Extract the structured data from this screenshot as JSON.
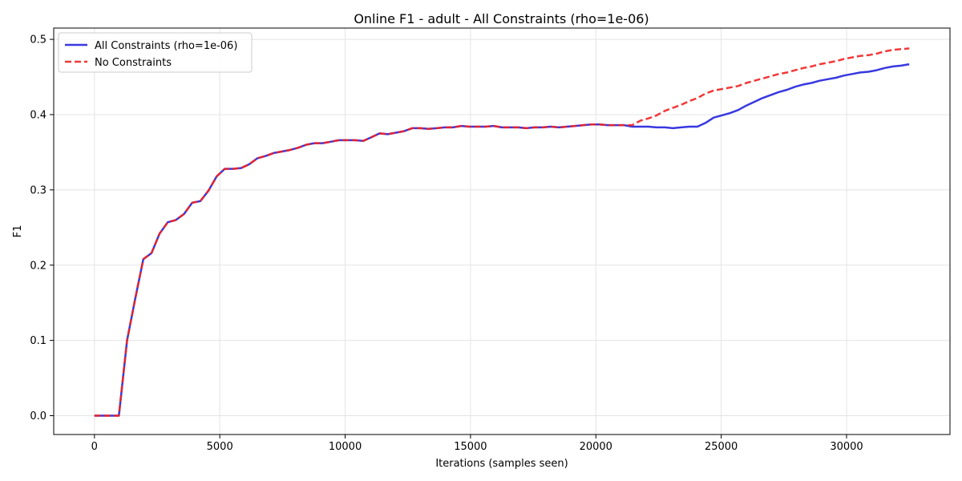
{
  "chart_data": {
    "type": "line",
    "title": "Online F1 - adult - All Constraints (rho=1e-06)",
    "xlabel": "Iterations (samples seen)",
    "ylabel": "F1",
    "xlim": [
      -1625,
      34125
    ],
    "ylim": [
      -0.025,
      0.515
    ],
    "xticks": [
      0,
      5000,
      10000,
      15000,
      20000,
      25000,
      30000
    ],
    "yticks": [
      0.0,
      0.1,
      0.2,
      0.3,
      0.4,
      0.5
    ],
    "xtick_labels": [
      "0",
      "5000",
      "10000",
      "15000",
      "20000",
      "25000",
      "30000"
    ],
    "ytick_labels": [
      "0.0",
      "0.1",
      "0.2",
      "0.3",
      "0.4",
      "0.5"
    ],
    "grid": true,
    "legend_position": "top-left",
    "series": [
      {
        "name": "All Constraints (rho=1e-06)",
        "color": "#2222dd",
        "style": "solid",
        "points": [
          [
            0,
            0.0
          ],
          [
            325,
            0.0
          ],
          [
            650,
            0.0
          ],
          [
            975,
            0.0
          ],
          [
            1300,
            0.1
          ],
          [
            1625,
            0.155
          ],
          [
            1950,
            0.208
          ],
          [
            2275,
            0.216
          ],
          [
            2600,
            0.242
          ],
          [
            2925,
            0.257
          ],
          [
            3250,
            0.26
          ],
          [
            3575,
            0.268
          ],
          [
            3900,
            0.283
          ],
          [
            4225,
            0.285
          ],
          [
            4550,
            0.299
          ],
          [
            4875,
            0.318
          ],
          [
            5200,
            0.328
          ],
          [
            5525,
            0.328
          ],
          [
            5850,
            0.329
          ],
          [
            6175,
            0.334
          ],
          [
            6500,
            0.342
          ],
          [
            6825,
            0.345
          ],
          [
            7150,
            0.349
          ],
          [
            7475,
            0.351
          ],
          [
            7800,
            0.353
          ],
          [
            8125,
            0.356
          ],
          [
            8450,
            0.36
          ],
          [
            8775,
            0.362
          ],
          [
            9100,
            0.362
          ],
          [
            9425,
            0.364
          ],
          [
            9750,
            0.366
          ],
          [
            10075,
            0.366
          ],
          [
            10400,
            0.366
          ],
          [
            10725,
            0.365
          ],
          [
            11050,
            0.37
          ],
          [
            11375,
            0.375
          ],
          [
            11700,
            0.374
          ],
          [
            12025,
            0.376
          ],
          [
            12350,
            0.378
          ],
          [
            12675,
            0.382
          ],
          [
            13000,
            0.382
          ],
          [
            13325,
            0.381
          ],
          [
            13650,
            0.382
          ],
          [
            13975,
            0.383
          ],
          [
            14300,
            0.383
          ],
          [
            14625,
            0.385
          ],
          [
            14950,
            0.384
          ],
          [
            15275,
            0.384
          ],
          [
            15600,
            0.384
          ],
          [
            15925,
            0.385
          ],
          [
            16250,
            0.383
          ],
          [
            16575,
            0.383
          ],
          [
            16900,
            0.383
          ],
          [
            17225,
            0.382
          ],
          [
            17550,
            0.383
          ],
          [
            17875,
            0.383
          ],
          [
            18200,
            0.384
          ],
          [
            18525,
            0.383
          ],
          [
            18850,
            0.384
          ],
          [
            19175,
            0.385
          ],
          [
            19500,
            0.386
          ],
          [
            19825,
            0.387
          ],
          [
            20150,
            0.387
          ],
          [
            20475,
            0.386
          ],
          [
            20800,
            0.386
          ],
          [
            21125,
            0.386
          ],
          [
            21450,
            0.384
          ],
          [
            21775,
            0.384
          ],
          [
            22100,
            0.384
          ],
          [
            22425,
            0.383
          ],
          [
            22750,
            0.383
          ],
          [
            23075,
            0.382
          ],
          [
            23400,
            0.383
          ],
          [
            23725,
            0.384
          ],
          [
            24050,
            0.384
          ],
          [
            24375,
            0.389
          ],
          [
            24700,
            0.396
          ],
          [
            25025,
            0.399
          ],
          [
            25350,
            0.402
          ],
          [
            25675,
            0.406
          ],
          [
            26000,
            0.412
          ],
          [
            26325,
            0.417
          ],
          [
            26650,
            0.422
          ],
          [
            26975,
            0.426
          ],
          [
            27300,
            0.43
          ],
          [
            27625,
            0.433
          ],
          [
            27950,
            0.437
          ],
          [
            28275,
            0.44
          ],
          [
            28600,
            0.442
          ],
          [
            28925,
            0.445
          ],
          [
            29250,
            0.447
          ],
          [
            29575,
            0.449
          ],
          [
            29900,
            0.452
          ],
          [
            30225,
            0.454
          ],
          [
            30550,
            0.456
          ],
          [
            30875,
            0.457
          ],
          [
            31200,
            0.459
          ],
          [
            31525,
            0.462
          ],
          [
            31850,
            0.464
          ],
          [
            32175,
            0.465
          ],
          [
            32500,
            0.467
          ]
        ]
      },
      {
        "name": "No Constraints",
        "color": "#ee2222",
        "style": "dashed",
        "points": [
          [
            0,
            0.0
          ],
          [
            325,
            0.0
          ],
          [
            650,
            0.0
          ],
          [
            975,
            0.0
          ],
          [
            1300,
            0.1
          ],
          [
            1625,
            0.155
          ],
          [
            1950,
            0.208
          ],
          [
            2275,
            0.216
          ],
          [
            2600,
            0.242
          ],
          [
            2925,
            0.257
          ],
          [
            3250,
            0.26
          ],
          [
            3575,
            0.268
          ],
          [
            3900,
            0.283
          ],
          [
            4225,
            0.285
          ],
          [
            4550,
            0.299
          ],
          [
            4875,
            0.318
          ],
          [
            5200,
            0.328
          ],
          [
            5525,
            0.328
          ],
          [
            5850,
            0.329
          ],
          [
            6175,
            0.334
          ],
          [
            6500,
            0.342
          ],
          [
            6825,
            0.345
          ],
          [
            7150,
            0.349
          ],
          [
            7475,
            0.351
          ],
          [
            7800,
            0.353
          ],
          [
            8125,
            0.356
          ],
          [
            8450,
            0.36
          ],
          [
            8775,
            0.362
          ],
          [
            9100,
            0.362
          ],
          [
            9425,
            0.364
          ],
          [
            9750,
            0.366
          ],
          [
            10075,
            0.366
          ],
          [
            10400,
            0.366
          ],
          [
            10725,
            0.365
          ],
          [
            11050,
            0.37
          ],
          [
            11375,
            0.375
          ],
          [
            11700,
            0.374
          ],
          [
            12025,
            0.376
          ],
          [
            12350,
            0.378
          ],
          [
            12675,
            0.382
          ],
          [
            13000,
            0.382
          ],
          [
            13325,
            0.381
          ],
          [
            13650,
            0.382
          ],
          [
            13975,
            0.383
          ],
          [
            14300,
            0.383
          ],
          [
            14625,
            0.385
          ],
          [
            14950,
            0.384
          ],
          [
            15275,
            0.384
          ],
          [
            15600,
            0.384
          ],
          [
            15925,
            0.385
          ],
          [
            16250,
            0.383
          ],
          [
            16575,
            0.383
          ],
          [
            16900,
            0.383
          ],
          [
            17225,
            0.382
          ],
          [
            17550,
            0.383
          ],
          [
            17875,
            0.383
          ],
          [
            18200,
            0.384
          ],
          [
            18525,
            0.383
          ],
          [
            18850,
            0.384
          ],
          [
            19175,
            0.385
          ],
          [
            19500,
            0.386
          ],
          [
            19825,
            0.387
          ],
          [
            20150,
            0.387
          ],
          [
            20475,
            0.386
          ],
          [
            20800,
            0.386
          ],
          [
            21125,
            0.386
          ],
          [
            21450,
            0.386
          ],
          [
            21775,
            0.392
          ],
          [
            22100,
            0.395
          ],
          [
            22425,
            0.399
          ],
          [
            22750,
            0.405
          ],
          [
            23075,
            0.409
          ],
          [
            23400,
            0.413
          ],
          [
            23725,
            0.418
          ],
          [
            24050,
            0.422
          ],
          [
            24375,
            0.428
          ],
          [
            24700,
            0.432
          ],
          [
            25025,
            0.434
          ],
          [
            25350,
            0.436
          ],
          [
            25675,
            0.438
          ],
          [
            26000,
            0.442
          ],
          [
            26325,
            0.445
          ],
          [
            26650,
            0.448
          ],
          [
            26975,
            0.451
          ],
          [
            27300,
            0.454
          ],
          [
            27625,
            0.456
          ],
          [
            27950,
            0.459
          ],
          [
            28275,
            0.462
          ],
          [
            28600,
            0.464
          ],
          [
            28925,
            0.467
          ],
          [
            29250,
            0.469
          ],
          [
            29575,
            0.471
          ],
          [
            29900,
            0.474
          ],
          [
            30225,
            0.476
          ],
          [
            30550,
            0.478
          ],
          [
            30875,
            0.479
          ],
          [
            31200,
            0.481
          ],
          [
            31525,
            0.484
          ],
          [
            31850,
            0.486
          ],
          [
            32175,
            0.487
          ],
          [
            32500,
            0.488
          ]
        ]
      }
    ]
  }
}
